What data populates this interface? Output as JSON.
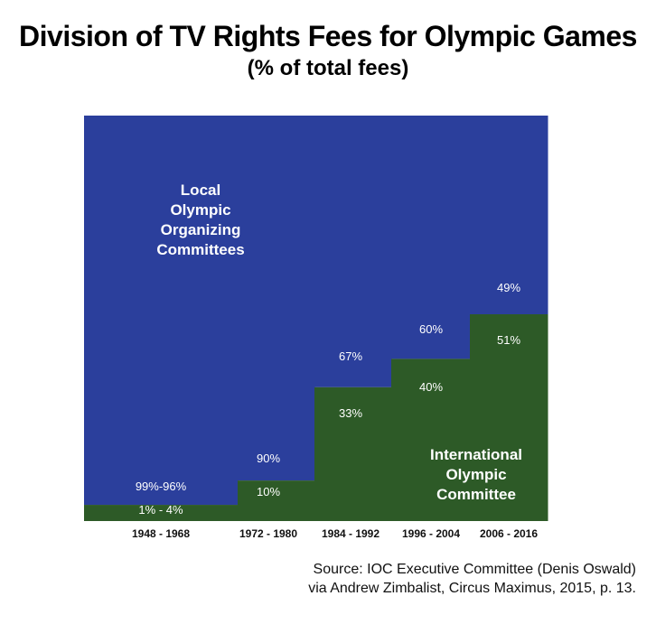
{
  "title": "Division of TV Rights Fees for Olympic Games",
  "subtitle": "(% of total fees)",
  "source": {
    "line1": "Source: IOC Executive Committee (Denis Oswald)",
    "line2": "via Andrew Zimbalist, Circus Maximus, 2015, p. 13."
  },
  "chart_data": {
    "type": "area",
    "stacked": true,
    "step": true,
    "categories": [
      "1948 - 1968",
      "1972 - 1980",
      "1984 - 1992",
      "1996 - 2004",
      "2006 - 2016"
    ],
    "series": [
      {
        "name": "International Olympic Committee",
        "color": "#2d5a27",
        "values": [
          4,
          10,
          33,
          40,
          51
        ],
        "labels": [
          "1% - 4%",
          "10%",
          "33%",
          "40%",
          "51%"
        ]
      },
      {
        "name": "Local Olympic Organizing Committees",
        "color": "#2b3f9c",
        "values": [
          96,
          90,
          67,
          60,
          49
        ],
        "labels": [
          "99%-96%",
          "90%",
          "67%",
          "60%",
          "49%"
        ]
      }
    ],
    "series_label_lines": {
      "local": [
        "Local",
        "Olympic",
        "Organizing",
        "Committees"
      ],
      "ioc": [
        "International",
        "Olympic",
        "Committee"
      ]
    },
    "ylim": [
      0,
      100
    ]
  }
}
